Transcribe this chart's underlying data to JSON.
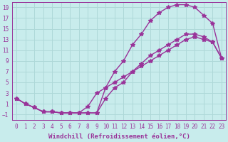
{
  "xlabel": "Windchill (Refroidissement éolien,°C)",
  "ylabel": "",
  "bg_color": "#c8ecec",
  "grid_color": "#aed8d8",
  "line_color": "#993399",
  "xlim": [
    -0.5,
    23.5
  ],
  "ylim": [
    -2.0,
    20.0
  ],
  "xticks": [
    0,
    1,
    2,
    3,
    4,
    5,
    6,
    7,
    8,
    9,
    10,
    11,
    12,
    13,
    14,
    15,
    16,
    17,
    18,
    19,
    20,
    21,
    22,
    23
  ],
  "yticks": [
    -1,
    1,
    3,
    5,
    7,
    9,
    11,
    13,
    15,
    17,
    19
  ],
  "curve1_x": [
    0,
    1,
    2,
    3,
    4,
    5,
    6,
    7,
    8,
    9,
    10,
    11,
    12,
    13,
    14,
    15,
    16,
    17,
    18,
    19,
    20,
    21,
    22,
    23
  ],
  "curve1_y": [
    2,
    1,
    0.3,
    -0.5,
    -0.5,
    -0.7,
    -0.7,
    -0.7,
    -0.7,
    -0.7,
    4,
    7,
    9,
    12,
    14,
    16.5,
    18,
    19,
    19.5,
    19.5,
    19,
    17.5,
    16,
    9.5
  ],
  "curve2_x": [
    0,
    1,
    2,
    3,
    4,
    5,
    6,
    7,
    8,
    9,
    10,
    11,
    12,
    13,
    14,
    15,
    16,
    17,
    18,
    19,
    20,
    21,
    22,
    23
  ],
  "curve2_y": [
    2,
    1,
    0.3,
    -0.5,
    -0.5,
    -0.7,
    -0.7,
    -0.7,
    -0.7,
    -0.7,
    2,
    4,
    5,
    7,
    8.5,
    10,
    11,
    12,
    13,
    14,
    14,
    13.5,
    12.5,
    9.5
  ],
  "curve3_x": [
    0,
    1,
    2,
    3,
    4,
    5,
    6,
    7,
    8,
    9,
    10,
    11,
    12,
    13,
    14,
    15,
    16,
    17,
    18,
    19,
    20,
    21,
    22,
    23
  ],
  "curve3_y": [
    2,
    1,
    0.3,
    -0.5,
    -0.5,
    -0.7,
    -0.7,
    -0.7,
    0.5,
    3,
    4,
    5,
    6,
    7,
    8,
    9,
    10,
    11,
    12,
    13,
    13.5,
    13,
    12.5,
    9.5
  ],
  "marker": "*",
  "markersize": 4,
  "linewidth": 1.0,
  "xlabel_fontsize": 6.5,
  "tick_fontsize": 5.5
}
